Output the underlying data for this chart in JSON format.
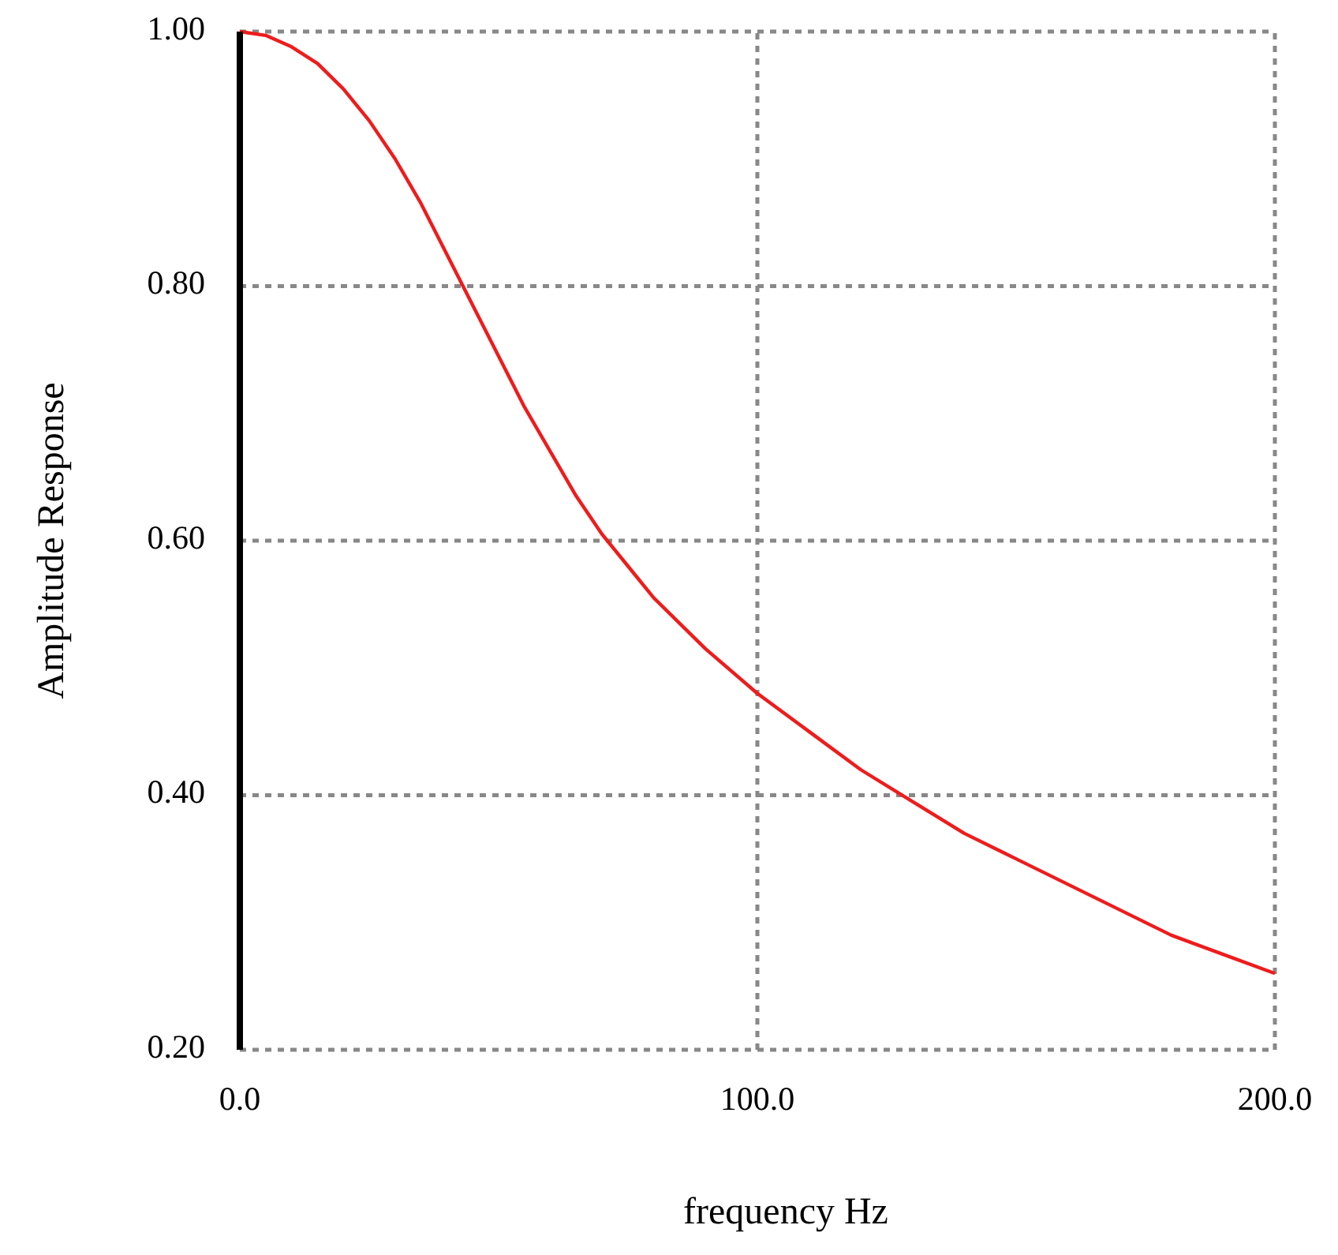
{
  "chart_data": {
    "type": "line",
    "xlabel": "frequency Hz",
    "ylabel": "Amplitude Response",
    "xlim": [
      0,
      200
    ],
    "ylim": [
      0.2,
      1.0
    ],
    "xticks": [
      {
        "value": 0,
        "label": "0.0"
      },
      {
        "value": 100,
        "label": "100.0"
      },
      {
        "value": 200,
        "label": "200.0"
      }
    ],
    "yticks": [
      {
        "value": 0.2,
        "label": "0.20"
      },
      {
        "value": 0.4,
        "label": "0.40"
      },
      {
        "value": 0.6,
        "label": "0.60"
      },
      {
        "value": 0.8,
        "label": "0.80"
      },
      {
        "value": 1.0,
        "label": "1.00"
      }
    ],
    "grid": true,
    "marker": "none",
    "line_style": "solid",
    "series": [
      {
        "color": "#ee1c1c",
        "x": [
          0,
          5,
          10,
          15,
          20,
          25,
          30,
          35,
          40,
          45,
          50,
          55,
          60,
          65,
          70,
          75,
          80,
          90,
          100,
          110,
          120,
          130,
          140,
          150,
          160,
          170,
          180,
          190,
          200
        ],
        "values": [
          1.0,
          0.997,
          0.988,
          0.975,
          0.955,
          0.93,
          0.9,
          0.865,
          0.825,
          0.785,
          0.745,
          0.705,
          0.67,
          0.635,
          0.605,
          0.58,
          0.555,
          0.515,
          0.48,
          0.45,
          0.42,
          0.395,
          0.37,
          0.35,
          0.33,
          0.31,
          0.29,
          0.275,
          0.26
        ]
      }
    ]
  }
}
